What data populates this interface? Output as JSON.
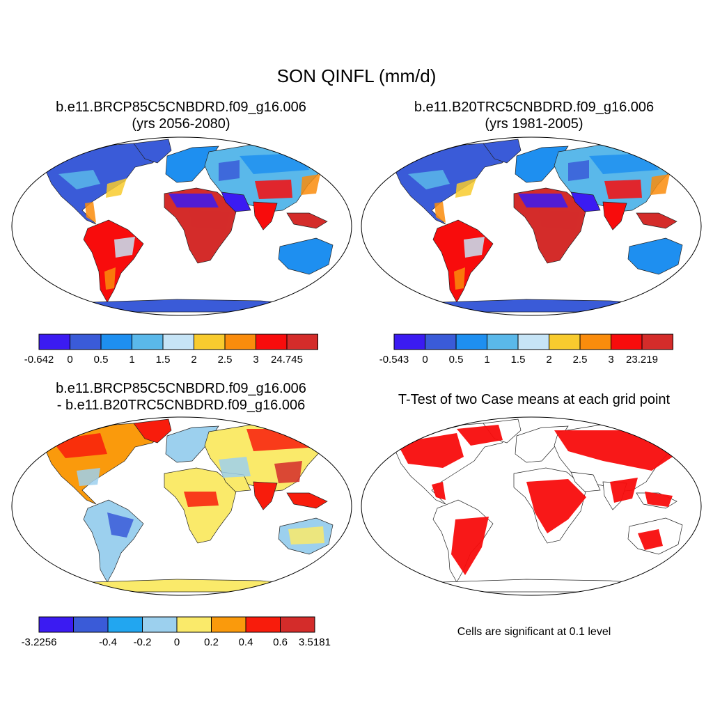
{
  "title": "SON QINFL (mm/d)",
  "panels": [
    {
      "id": "p1",
      "title_line1": "b.e11.BRCP85C5CNBDRD.f09_g16.006",
      "title_line2": "(yrs 2056-2080)",
      "colorbar": {
        "colors": [
          "#3b1bf2",
          "#3a5bd8",
          "#1e8ff0",
          "#5ab8ea",
          "#c6e4f6",
          "#f8cb2e",
          "#fa8c0c",
          "#f80c0c",
          "#d42c2a"
        ],
        "labels": [
          "-0.642",
          "0",
          "0.5",
          "1",
          "1.5",
          "2",
          "2.5",
          "3",
          "24.745"
        ]
      }
    },
    {
      "id": "p2",
      "title_line1": "b.e11.B20TRC5CNBDRD.f09_g16.006",
      "title_line2": "(yrs 1981-2005)",
      "colorbar": {
        "colors": [
          "#3b1bf2",
          "#3a5bd8",
          "#1e8ff0",
          "#5ab8ea",
          "#c6e4f6",
          "#f8cb2e",
          "#fa8c0c",
          "#f80c0c",
          "#d42c2a"
        ],
        "labels": [
          "-0.543",
          "0",
          "0.5",
          "1",
          "1.5",
          "2",
          "2.5",
          "3",
          "23.219"
        ]
      }
    },
    {
      "id": "p3",
      "title_line1": "b.e11.BRCP85C5CNBDRD.f09_g16.006",
      "title_line2": "- b.e11.B20TRC5CNBDRD.f09_g16.006",
      "colorbar": {
        "colors": [
          "#3b1bf2",
          "#3a5bd8",
          "#22a6f0",
          "#9cd0ee",
          "#faea6a",
          "#fa9a0c",
          "#f81c0c",
          "#d42c2a"
        ],
        "labels": [
          "-3.2256",
          "",
          "-0.4",
          "-0.2",
          "0",
          "0.2",
          "0.4",
          "0.6",
          "3.5181"
        ]
      }
    },
    {
      "id": "p4",
      "title_line1": "T-Test of two Case means at each grid point",
      "note": "Cells are significant at 0.1 level"
    }
  ],
  "colors": {
    "antarctica_p1": "#3a5bd8",
    "antarctica_p3": "#faea6a",
    "significant": "#f80c0c"
  }
}
